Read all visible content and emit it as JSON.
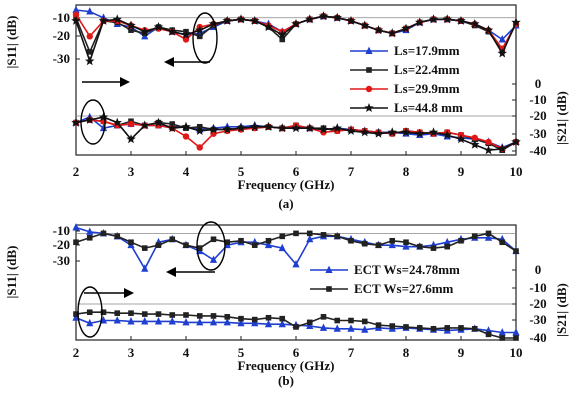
{
  "figure": {
    "panels": [
      {
        "caption": "(a)",
        "xlabel": "Frequency (GHz)",
        "ylabel_left": "|S11| (dB)",
        "ylabel_right": "|S21| (dB)",
        "x_ticks": [
          "2",
          "3",
          "4",
          "5",
          "6",
          "7",
          "8",
          "9",
          "10"
        ],
        "y_left_ticks": [
          "-10",
          "-20",
          "-30"
        ],
        "y_right_ticks": [
          "0",
          "-10",
          "-20",
          "-30",
          "-40"
        ]
      },
      {
        "caption": "(b)",
        "xlabel": "Frequency (GHz)",
        "ylabel_left": "|S11| (dB)",
        "ylabel_right": "|S21| (dB)",
        "x_ticks": [
          "2",
          "3",
          "4",
          "5",
          "6",
          "7",
          "8",
          "9",
          "10"
        ],
        "y_left_ticks": [
          "-10",
          "-20",
          "-30"
        ],
        "y_right_ticks": [
          "0",
          "-10",
          "-20",
          "-30",
          "-40"
        ]
      }
    ]
  },
  "chart_data": [
    {
      "type": "line",
      "title": "",
      "caption": "(a)",
      "xlabel": "Frequency (GHz)",
      "ylabel": "|S11| (dB)",
      "y2label": "|S21| (dB)",
      "xlim": [
        2,
        10
      ],
      "ylim_s11": [
        -45,
        -5
      ],
      "ylim_s21": [
        -40,
        10
      ],
      "legend_position": "right",
      "grid": false,
      "x": [
        2.0,
        2.25,
        2.5,
        2.75,
        3.0,
        3.25,
        3.5,
        3.75,
        4.0,
        4.25,
        4.5,
        4.75,
        5.0,
        5.25,
        5.5,
        5.75,
        6.0,
        6.25,
        6.5,
        6.75,
        7.0,
        7.25,
        7.5,
        7.75,
        8.0,
        8.25,
        8.5,
        8.75,
        9.0,
        9.25,
        9.5,
        9.75,
        10.0
      ],
      "series": [
        {
          "name": "Ls=17.9mm",
          "color": "#1f3fd0",
          "marker": "triangle",
          "s11": [
            -5,
            -6,
            -10,
            -14,
            -16,
            -22,
            -16,
            -19,
            -21,
            -20,
            -16,
            -12,
            -11,
            -12,
            -14,
            -19,
            -14,
            -11,
            -9,
            -10,
            -12,
            -15,
            -18,
            -20,
            -18,
            -13,
            -11,
            -11,
            -12,
            -14,
            -18,
            -24,
            -15
          ],
          "s21": [
            -18,
            -14,
            -22,
            -20,
            -19,
            -20,
            -20,
            -21,
            -21,
            -23,
            -22,
            -21,
            -21,
            -20,
            -21,
            -22,
            -21,
            -22,
            -23,
            -22,
            -23,
            -24,
            -25,
            -25,
            -26,
            -27,
            -26,
            -28,
            -29,
            -30,
            -32,
            -36,
            -32
          ]
        },
        {
          "name": "Ls=22.4mm",
          "color": "#222222",
          "marker": "square",
          "s11": [
            -10,
            -32,
            -12,
            -13,
            -18,
            -20,
            -16,
            -18,
            -19,
            -22,
            -15,
            -12,
            -11,
            -12,
            -16,
            -24,
            -14,
            -11,
            -9,
            -10,
            -12,
            -15,
            -18,
            -20,
            -17,
            -13,
            -11,
            -11,
            -12,
            -15,
            -19,
            -31,
            -14
          ],
          "s21": [
            -18,
            -16,
            -17,
            -20,
            -17,
            -20,
            -18,
            -19,
            -22,
            -21,
            -23,
            -23,
            -22,
            -22,
            -21,
            -22,
            -20,
            -22,
            -22,
            -24,
            -23,
            -24,
            -25,
            -26,
            -24,
            -25,
            -26,
            -25,
            -27,
            -30,
            -33,
            -38,
            -32
          ]
        },
        {
          "name": "Ls=29.9mm",
          "color": "#e01818",
          "marker": "circle",
          "s11": [
            -8,
            -22,
            -12,
            -12,
            -15,
            -18,
            -17,
            -19,
            -24,
            -16,
            -14,
            -12,
            -11,
            -12,
            -15,
            -19,
            -14,
            -11,
            -9,
            -10,
            -12,
            -15,
            -18,
            -20,
            -17,
            -13,
            -11,
            -11,
            -12,
            -14,
            -18,
            -30,
            -14
          ],
          "s21": [
            -18,
            -16,
            -17,
            -20,
            -19,
            -20,
            -20,
            -22,
            -28,
            -36,
            -26,
            -24,
            -23,
            -22,
            -21,
            -22,
            -20,
            -22,
            -25,
            -24,
            -23,
            -24,
            -25,
            -26,
            -24,
            -25,
            -26,
            -25,
            -27,
            -29,
            -32,
            -37,
            -32
          ]
        },
        {
          "name": "Ls=44.8 mm",
          "color": "#111111",
          "marker": "star",
          "s11": [
            -12,
            -38,
            -12,
            -11,
            -15,
            -19,
            -16,
            -19,
            -21,
            -18,
            -14,
            -12,
            -11,
            -12,
            -16,
            -21,
            -14,
            -11,
            -9,
            -10,
            -12,
            -15,
            -18,
            -20,
            -17,
            -13,
            -11,
            -11,
            -12,
            -14,
            -18,
            -33,
            -13
          ],
          "s21": [
            -18,
            -16,
            -14,
            -18,
            -30,
            -20,
            -18,
            -22,
            -21,
            -24,
            -23,
            -23,
            -22,
            -21,
            -21,
            -22,
            -22,
            -22,
            -23,
            -22,
            -24,
            -25,
            -26,
            -25,
            -25,
            -26,
            -25,
            -27,
            -30,
            -34,
            -38,
            -37,
            -32
          ]
        }
      ]
    },
    {
      "type": "line",
      "title": "",
      "caption": "(b)",
      "xlabel": "Frequency (GHz)",
      "ylabel": "|S11| (dB)",
      "y2label": "|S21| (dB)",
      "xlim": [
        2,
        10
      ],
      "ylim_s11": [
        -45,
        -5
      ],
      "ylim_s21": [
        -40,
        10
      ],
      "legend_position": "right",
      "grid": false,
      "x": [
        2.0,
        2.25,
        2.5,
        2.75,
        3.0,
        3.25,
        3.5,
        3.75,
        4.0,
        4.25,
        4.5,
        4.75,
        5.0,
        5.25,
        5.5,
        5.75,
        6.0,
        6.25,
        6.5,
        6.75,
        7.0,
        7.25,
        7.5,
        7.75,
        8.0,
        8.25,
        8.5,
        8.75,
        9.0,
        9.25,
        9.5,
        9.75,
        10.0
      ],
      "series": [
        {
          "name": "ECT Ws=24.78mm",
          "color": "#1f3fd0",
          "marker": "triangle",
          "s11": [
            -6,
            -9,
            -10,
            -12,
            -18,
            -34,
            -16,
            -14,
            -18,
            -22,
            -28,
            -18,
            -16,
            -16,
            -18,
            -20,
            -31,
            -14,
            -12,
            -12,
            -14,
            -16,
            -18,
            -18,
            -19,
            -19,
            -18,
            -16,
            -14,
            -13,
            -13,
            -14,
            -22
          ],
          "s21": [
            -18,
            -24,
            -21,
            -21,
            -22,
            -22,
            -22,
            -22,
            -23,
            -23,
            -23,
            -23,
            -24,
            -24,
            -25,
            -25,
            -26,
            -27,
            -29,
            -30,
            -30,
            -31,
            -29,
            -30,
            -29,
            -30,
            -31,
            -32,
            -31,
            -30,
            -32,
            -34,
            -34
          ]
        },
        {
          "name": "ECT Ws=27.6mm",
          "color": "#222222",
          "marker": "square",
          "s11": [
            -16,
            -13,
            -10,
            -12,
            -16,
            -20,
            -18,
            -14,
            -18,
            -20,
            -14,
            -16,
            -15,
            -18,
            -15,
            -12,
            -10,
            -10,
            -11,
            -12,
            -15,
            -17,
            -18,
            -15,
            -16,
            -19,
            -20,
            -19,
            -15,
            -12,
            -10,
            -16,
            -22
          ],
          "s21": [
            -14,
            -12,
            -12,
            -13,
            -13,
            -14,
            -14,
            -15,
            -15,
            -16,
            -16,
            -17,
            -19,
            -20,
            -18,
            -19,
            -28,
            -23,
            -17,
            -21,
            -21,
            -22,
            -26,
            -27,
            -28,
            -29,
            -30,
            -29,
            -29,
            -30,
            -36,
            -40,
            -40
          ]
        }
      ]
    }
  ]
}
